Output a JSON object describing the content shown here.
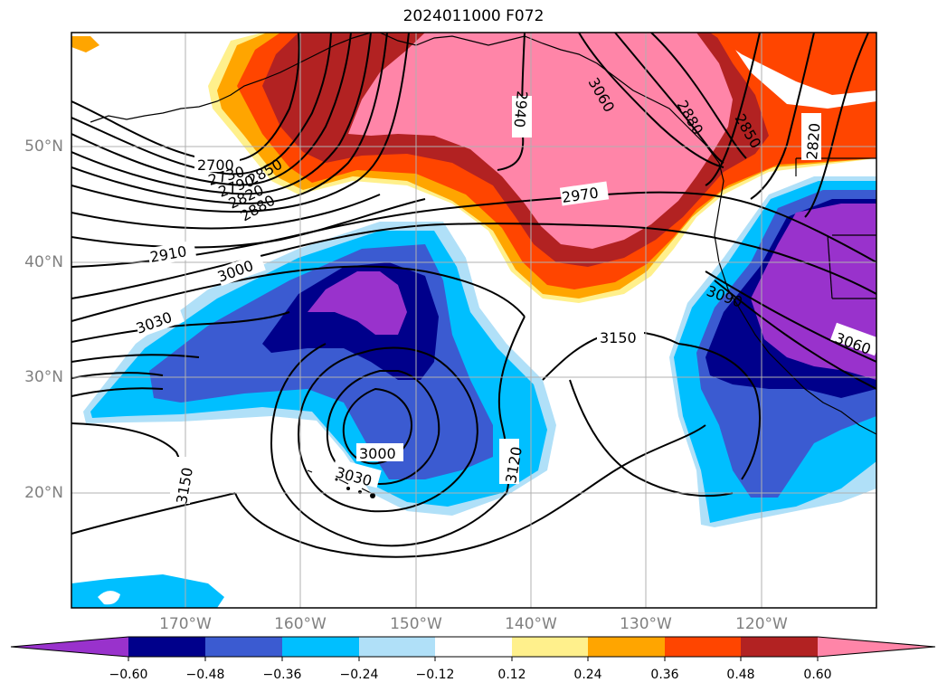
{
  "title": "2024011000 F072",
  "lat_labels": [
    "50°N",
    "40°N",
    "30°N",
    "20°N"
  ],
  "lon_labels": [
    "170°W",
    "160°W",
    "150°W",
    "140°W",
    "130°W",
    "120°W"
  ],
  "colorbar": {
    "colors": [
      "#9932cc",
      "#00008b",
      "#3b5bd1",
      "#00bfff",
      "#b0e0f8",
      "#ffffff",
      "#fff08c",
      "#ffa500",
      "#ff4500",
      "#b22222",
      "#ff85a8"
    ],
    "tick_labels": [
      "−0.60",
      "−0.48",
      "−0.36",
      "−0.24",
      "−0.12",
      "0.12",
      "0.24",
      "0.36",
      "0.48",
      "0.60"
    ]
  },
  "contour_labels": [
    "2700",
    "2730",
    "2790",
    "2820",
    "2850",
    "2880",
    "2910",
    "2940",
    "2970",
    "3000",
    "3030",
    "3060",
    "3120",
    "3150",
    "2880",
    "2850",
    "2820",
    "3000",
    "3030",
    "3150",
    "3060",
    "3090"
  ],
  "colors": {
    "grid": "#b0b0b0",
    "contour": "#000000"
  }
}
